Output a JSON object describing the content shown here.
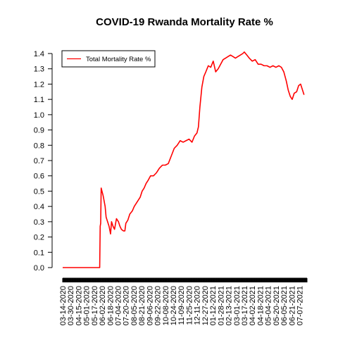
{
  "chart_data": {
    "type": "line",
    "title": "COVID-19 Rwanda Mortality Rate %",
    "xlabel": "",
    "ylabel": "",
    "ylim": [
      0.0,
      1.4
    ],
    "y_ticks": [
      "0.0",
      "0.1",
      "0.2",
      "0.3",
      "0.4",
      "0.5",
      "0.6",
      "0.7",
      "0.8",
      "0.9",
      "1.0",
      "1.1",
      "1.2",
      "1.3",
      "1.4"
    ],
    "x_tick_labels": [
      "03-14-2020",
      "03-30-2020",
      "04-15-2020",
      "05-01-2020",
      "05-17-2020",
      "06-02-2020",
      "06-18-2020",
      "07-04-2020",
      "07-20-2020",
      "08-05-2020",
      "08-21-2020",
      "09-06-2020",
      "09-22-2020",
      "10-08-2020",
      "10-24-2020",
      "11-09-2020",
      "11-25-2020",
      "12-11-2020",
      "12-27-2020",
      "01-12-2021",
      "01-28-2021",
      "02-13-2021",
      "03-01-2021",
      "03-17-2021",
      "04-02-2021",
      "04-18-2021",
      "05-04-2021",
      "05-20-2021",
      "06-05-2021",
      "06-21-2021",
      "07-07-2021"
    ],
    "legend": {
      "position": "top-left",
      "entries": [
        "Total Mortality Rate %"
      ]
    },
    "grid": false,
    "series": [
      {
        "name": "Total Mortality Rate %",
        "color": "#ff0000",
        "x_start": "03-14-2020",
        "x_end": "07-22-2021",
        "points": [
          [
            "03-14-2020",
            0.0
          ],
          [
            "05-28-2020",
            0.0
          ],
          [
            "05-29-2020",
            0.27
          ],
          [
            "05-30-2020",
            0.29
          ],
          [
            "05-31-2020",
            0.52
          ],
          [
            "06-04-2020",
            0.47
          ],
          [
            "06-08-2020",
            0.4
          ],
          [
            "06-10-2020",
            0.33
          ],
          [
            "06-13-2020",
            0.3
          ],
          [
            "06-16-2020",
            0.27
          ],
          [
            "06-19-2020",
            0.22
          ],
          [
            "06-21-2020",
            0.3
          ],
          [
            "06-24-2020",
            0.27
          ],
          [
            "06-27-2020",
            0.25
          ],
          [
            "07-01-2020",
            0.32
          ],
          [
            "07-05-2020",
            0.3
          ],
          [
            "07-08-2020",
            0.27
          ],
          [
            "07-11-2020",
            0.25
          ],
          [
            "07-15-2020",
            0.24
          ],
          [
            "07-18-2020",
            0.24
          ],
          [
            "07-20-2020",
            0.29
          ],
          [
            "07-24-2020",
            0.31
          ],
          [
            "07-28-2020",
            0.35
          ],
          [
            "08-02-2020",
            0.37
          ],
          [
            "08-06-2020",
            0.4
          ],
          [
            "08-10-2020",
            0.42
          ],
          [
            "08-14-2020",
            0.44
          ],
          [
            "08-18-2020",
            0.46
          ],
          [
            "08-22-2020",
            0.5
          ],
          [
            "08-26-2020",
            0.52
          ],
          [
            "08-30-2020",
            0.55
          ],
          [
            "09-03-2020",
            0.57
          ],
          [
            "09-08-2020",
            0.6
          ],
          [
            "09-14-2020",
            0.6
          ],
          [
            "09-20-2020",
            0.62
          ],
          [
            "09-26-2020",
            0.65
          ],
          [
            "10-02-2020",
            0.67
          ],
          [
            "10-08-2020",
            0.67
          ],
          [
            "10-14-2020",
            0.68
          ],
          [
            "10-20-2020",
            0.73
          ],
          [
            "10-26-2020",
            0.78
          ],
          [
            "11-01-2020",
            0.8
          ],
          [
            "11-07-2020",
            0.83
          ],
          [
            "11-13-2020",
            0.82
          ],
          [
            "11-19-2020",
            0.83
          ],
          [
            "11-25-2020",
            0.84
          ],
          [
            "12-01-2020",
            0.82
          ],
          [
            "12-06-2020",
            0.86
          ],
          [
            "12-11-2020",
            0.88
          ],
          [
            "12-14-2020",
            0.92
          ],
          [
            "12-17-2020",
            1.05
          ],
          [
            "12-21-2020",
            1.18
          ],
          [
            "12-25-2020",
            1.25
          ],
          [
            "12-29-2020",
            1.28
          ],
          [
            "01-03-2021",
            1.32
          ],
          [
            "01-08-2021",
            1.31
          ],
          [
            "01-13-2021",
            1.35
          ],
          [
            "01-18-2021",
            1.28
          ],
          [
            "01-23-2021",
            1.3
          ],
          [
            "01-28-2021",
            1.33
          ],
          [
            "02-02-2021",
            1.36
          ],
          [
            "02-07-2021",
            1.37
          ],
          [
            "02-12-2021",
            1.38
          ],
          [
            "02-17-2021",
            1.39
          ],
          [
            "02-22-2021",
            1.38
          ],
          [
            "02-27-2021",
            1.37
          ],
          [
            "03-04-2021",
            1.38
          ],
          [
            "03-09-2021",
            1.39
          ],
          [
            "03-14-2021",
            1.4
          ],
          [
            "03-17-2021",
            1.41
          ],
          [
            "03-22-2021",
            1.39
          ],
          [
            "03-27-2021",
            1.37
          ],
          [
            "04-02-2021",
            1.35
          ],
          [
            "04-08-2021",
            1.36
          ],
          [
            "04-14-2021",
            1.33
          ],
          [
            "04-20-2021",
            1.33
          ],
          [
            "04-26-2021",
            1.32
          ],
          [
            "05-02-2021",
            1.32
          ],
          [
            "05-08-2021",
            1.31
          ],
          [
            "05-14-2021",
            1.32
          ],
          [
            "05-20-2021",
            1.31
          ],
          [
            "05-26-2021",
            1.32
          ],
          [
            "05-31-2021",
            1.31
          ],
          [
            "06-05-2021",
            1.28
          ],
          [
            "06-10-2021",
            1.22
          ],
          [
            "06-14-2021",
            1.16
          ],
          [
            "06-18-2021",
            1.12
          ],
          [
            "06-22-2021",
            1.1
          ],
          [
            "06-26-2021",
            1.14
          ],
          [
            "07-01-2021",
            1.15
          ],
          [
            "07-05-2021",
            1.19
          ],
          [
            "07-09-2021",
            1.2
          ],
          [
            "07-13-2021",
            1.16
          ],
          [
            "07-16-2021",
            1.13
          ]
        ]
      }
    ]
  }
}
